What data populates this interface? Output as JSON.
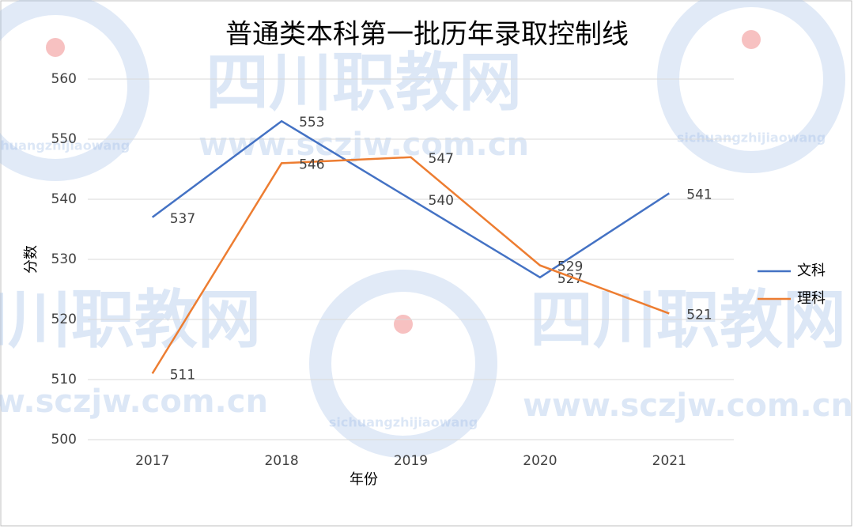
{
  "chart_data": {
    "type": "line",
    "title": "普通类本科第一批历年录取控制线",
    "x_label": "年份",
    "y_label": "分数",
    "categories": [
      "2017",
      "2018",
      "2019",
      "2020",
      "2021"
    ],
    "series": [
      {
        "name": "文科",
        "color": "#4472c4",
        "values": [
          537,
          553,
          540,
          527,
          541
        ]
      },
      {
        "name": "理科",
        "color": "#ed7d31",
        "values": [
          511,
          546,
          547,
          529,
          521
        ]
      }
    ],
    "ylim": [
      500,
      560
    ],
    "yticks": [
      500,
      510,
      520,
      530,
      540,
      550,
      560
    ],
    "grid": true,
    "legend": "right",
    "watermark": [
      "四川职教网",
      "www.sczjw.com.cn",
      "sichuangzhijiaowang"
    ]
  }
}
